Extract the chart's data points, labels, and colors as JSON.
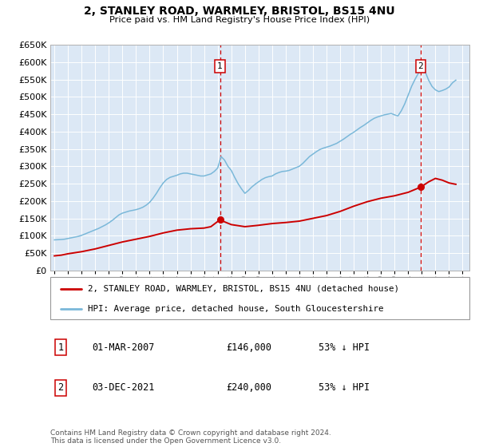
{
  "title": "2, STANLEY ROAD, WARMLEY, BRISTOL, BS15 4NU",
  "subtitle": "Price paid vs. HM Land Registry's House Price Index (HPI)",
  "hpi_color": "#7ab8d9",
  "price_color": "#cc0000",
  "vline_color": "#cc0000",
  "plot_background": "#dce8f5",
  "ylim": [
    0,
    650000
  ],
  "yticks": [
    0,
    50000,
    100000,
    150000,
    200000,
    250000,
    300000,
    350000,
    400000,
    450000,
    500000,
    550000,
    600000,
    650000
  ],
  "xlim_start": 1994.7,
  "xlim_end": 2025.5,
  "xticks": [
    1995,
    1996,
    1997,
    1998,
    1999,
    2000,
    2001,
    2002,
    2003,
    2004,
    2005,
    2006,
    2007,
    2008,
    2009,
    2010,
    2011,
    2012,
    2013,
    2014,
    2015,
    2016,
    2017,
    2018,
    2019,
    2020,
    2021,
    2022,
    2023,
    2024,
    2025
  ],
  "marker1_x": 2007.17,
  "marker1_y": 146000,
  "marker2_x": 2021.92,
  "marker2_y": 240000,
  "legend_line1": "2, STANLEY ROAD, WARMLEY, BRISTOL, BS15 4NU (detached house)",
  "legend_line2": "HPI: Average price, detached house, South Gloucestershire",
  "table_row1": [
    "1",
    "01-MAR-2007",
    "£146,000",
    "53% ↓ HPI"
  ],
  "table_row2": [
    "2",
    "03-DEC-2021",
    "£240,000",
    "53% ↓ HPI"
  ],
  "footnote1": "Contains HM Land Registry data © Crown copyright and database right 2024.",
  "footnote2": "This data is licensed under the Open Government Licence v3.0.",
  "hpi_data_x": [
    1995.0,
    1995.25,
    1995.5,
    1995.75,
    1996.0,
    1996.25,
    1996.5,
    1996.75,
    1997.0,
    1997.25,
    1997.5,
    1997.75,
    1998.0,
    1998.25,
    1998.5,
    1998.75,
    1999.0,
    1999.25,
    1999.5,
    1999.75,
    2000.0,
    2000.25,
    2000.5,
    2000.75,
    2001.0,
    2001.25,
    2001.5,
    2001.75,
    2002.0,
    2002.25,
    2002.5,
    2002.75,
    2003.0,
    2003.25,
    2003.5,
    2003.75,
    2004.0,
    2004.25,
    2004.5,
    2004.75,
    2005.0,
    2005.25,
    2005.5,
    2005.75,
    2006.0,
    2006.25,
    2006.5,
    2006.75,
    2007.0,
    2007.25,
    2007.5,
    2007.75,
    2008.0,
    2008.25,
    2008.5,
    2008.75,
    2009.0,
    2009.25,
    2009.5,
    2009.75,
    2010.0,
    2010.25,
    2010.5,
    2010.75,
    2011.0,
    2011.25,
    2011.5,
    2011.75,
    2012.0,
    2012.25,
    2012.5,
    2012.75,
    2013.0,
    2013.25,
    2013.5,
    2013.75,
    2014.0,
    2014.25,
    2014.5,
    2014.75,
    2015.0,
    2015.25,
    2015.5,
    2015.75,
    2016.0,
    2016.25,
    2016.5,
    2016.75,
    2017.0,
    2017.25,
    2017.5,
    2017.75,
    2018.0,
    2018.25,
    2018.5,
    2018.75,
    2019.0,
    2019.25,
    2019.5,
    2019.75,
    2020.0,
    2020.25,
    2020.5,
    2020.75,
    2021.0,
    2021.25,
    2021.5,
    2021.75,
    2022.0,
    2022.25,
    2022.5,
    2022.75,
    2023.0,
    2023.25,
    2023.5,
    2023.75,
    2024.0,
    2024.25,
    2024.5
  ],
  "hpi_data_y": [
    88000,
    88500,
    89000,
    90000,
    92000,
    94000,
    96000,
    98000,
    101000,
    105000,
    109000,
    113000,
    117000,
    121000,
    126000,
    131000,
    137000,
    144000,
    152000,
    160000,
    165000,
    168000,
    171000,
    173000,
    175000,
    178000,
    182000,
    188000,
    196000,
    208000,
    222000,
    238000,
    252000,
    262000,
    268000,
    271000,
    274000,
    278000,
    280000,
    280000,
    278000,
    276000,
    274000,
    272000,
    272000,
    275000,
    278000,
    285000,
    295000,
    328000,
    318000,
    300000,
    288000,
    268000,
    250000,
    235000,
    222000,
    230000,
    240000,
    248000,
    255000,
    262000,
    267000,
    270000,
    272000,
    278000,
    282000,
    285000,
    286000,
    288000,
    292000,
    296000,
    300000,
    308000,
    318000,
    328000,
    335000,
    342000,
    348000,
    352000,
    355000,
    358000,
    362000,
    366000,
    372000,
    378000,
    385000,
    392000,
    398000,
    405000,
    412000,
    418000,
    425000,
    432000,
    438000,
    442000,
    445000,
    448000,
    450000,
    452000,
    448000,
    445000,
    460000,
    480000,
    505000,
    530000,
    550000,
    568000,
    575000,
    572000,
    548000,
    530000,
    520000,
    515000,
    518000,
    522000,
    528000,
    540000,
    548000
  ],
  "price_data_x": [
    1995.0,
    1995.5,
    1996.0,
    1997.0,
    1998.0,
    1999.0,
    2000.0,
    2001.0,
    2002.0,
    2003.0,
    2004.0,
    2005.0,
    2006.0,
    2006.5,
    2007.17,
    2007.5,
    2008.0,
    2009.0,
    2010.0,
    2011.0,
    2012.0,
    2013.0,
    2014.0,
    2015.0,
    2016.0,
    2017.0,
    2018.0,
    2019.0,
    2020.0,
    2021.0,
    2021.92,
    2022.5,
    2023.0,
    2023.5,
    2024.0,
    2024.5
  ],
  "price_data_y": [
    42000,
    44000,
    48000,
    54000,
    62000,
    72000,
    82000,
    90000,
    98000,
    108000,
    116000,
    120000,
    122000,
    126000,
    146000,
    140000,
    132000,
    126000,
    130000,
    135000,
    138000,
    142000,
    150000,
    158000,
    170000,
    185000,
    198000,
    208000,
    215000,
    225000,
    240000,
    255000,
    265000,
    260000,
    252000,
    248000
  ]
}
